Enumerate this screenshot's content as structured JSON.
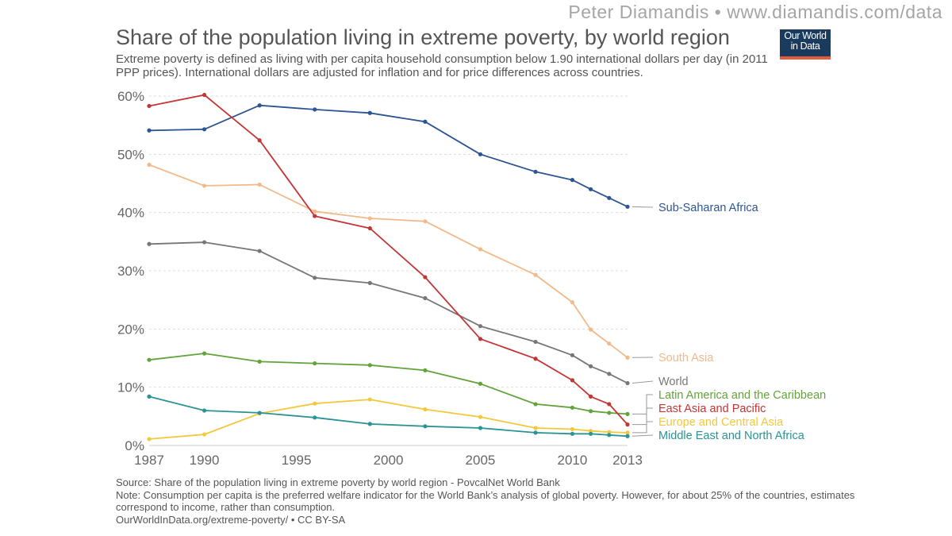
{
  "header": {
    "credit": "Peter Diamandis  •  www.diamandis.com/data",
    "title": "Share of the population living in extreme poverty, by world region",
    "subtitle": "Extreme poverty is defined as living with per capita household consumption below 1.90 international dollars per day (in 2011 PPP prices). International dollars are adjusted for inflation and for price differences across countries.",
    "logo_line1": "Our World",
    "logo_line2": "in Data",
    "logo_bg": "#1a3a5e",
    "logo_accent": "#e25c3d"
  },
  "footer": {
    "source": "Source: Share of the population living in extreme poverty by world region - PovcalNet World Bank",
    "note": "Note: Consumption per capita is the preferred welfare indicator for the World Bank’s analysis of global poverty. However, for about 25% of the countries, estimates correspond to income, rather than consumption.",
    "license": "OurWorldInData.org/extreme-poverty/ • CC BY-SA"
  },
  "chart_data": {
    "type": "line",
    "xlim": [
      1987,
      2013
    ],
    "ylim": [
      0,
      60
    ],
    "x_ticks": [
      1987,
      1990,
      1995,
      2000,
      2005,
      2010,
      2013
    ],
    "y_ticks": [
      0,
      10,
      20,
      30,
      40,
      50,
      60
    ],
    "y_tick_labels": [
      "0%",
      "10%",
      "20%",
      "30%",
      "40%",
      "50%",
      "60%"
    ],
    "grid": "horizontal dashed",
    "series": [
      {
        "name": "Sub-Saharan Africa",
        "color": "#2d5593",
        "x": [
          1987,
          1990,
          1993,
          1996,
          1999,
          2002,
          2005,
          2008,
          2010,
          2011,
          2012,
          2013
        ],
        "y": [
          54.1,
          54.3,
          58.4,
          57.7,
          57.1,
          55.6,
          50.0,
          47.0,
          45.6,
          44.0,
          42.5,
          41.0
        ]
      },
      {
        "name": "South Asia",
        "color": "#f2b98a",
        "x": [
          1987,
          1990,
          1993,
          1996,
          1999,
          2002,
          2005,
          2008,
          2010,
          2011,
          2012,
          2013
        ],
        "y": [
          48.2,
          44.6,
          44.8,
          40.2,
          39.0,
          38.5,
          33.7,
          29.3,
          24.6,
          19.9,
          17.5,
          15.1
        ]
      },
      {
        "name": "World",
        "color": "#777777",
        "x": [
          1987,
          1990,
          1993,
          1996,
          1999,
          2002,
          2005,
          2008,
          2010,
          2011,
          2012,
          2013
        ],
        "y": [
          34.6,
          34.9,
          33.4,
          28.8,
          27.9,
          25.3,
          20.5,
          17.8,
          15.5,
          13.6,
          12.3,
          10.7
        ]
      },
      {
        "name": "Latin America and the Caribbean",
        "color": "#62a33a",
        "x": [
          1987,
          1990,
          1993,
          1996,
          1999,
          2002,
          2005,
          2008,
          2010,
          2011,
          2012,
          2013
        ],
        "y": [
          14.7,
          15.8,
          14.4,
          14.1,
          13.8,
          12.9,
          10.6,
          7.1,
          6.5,
          5.9,
          5.6,
          5.4
        ]
      },
      {
        "name": "East Asia and Pacific",
        "color": "#c43535",
        "x": [
          1987,
          1990,
          1993,
          1996,
          1999,
          2002,
          2005,
          2008,
          2010,
          2011,
          2012,
          2013
        ],
        "y": [
          58.3,
          60.2,
          52.4,
          39.4,
          37.3,
          28.9,
          18.3,
          14.9,
          11.2,
          8.4,
          7.1,
          3.6
        ]
      },
      {
        "name": "Europe and Central Asia",
        "color": "#f4c83c",
        "x": [
          1987,
          1990,
          1993,
          1996,
          1999,
          2002,
          2005,
          2008,
          2010,
          2011,
          2012,
          2013
        ],
        "y": [
          1.1,
          1.9,
          5.5,
          7.2,
          7.9,
          6.2,
          4.9,
          3.0,
          2.8,
          2.5,
          2.3,
          2.2
        ]
      },
      {
        "name": "Middle East and North Africa",
        "color": "#2a9494",
        "x": [
          1987,
          1990,
          1993,
          1996,
          1999,
          2002,
          2005,
          2008,
          2010,
          2011,
          2012,
          2013
        ],
        "y": [
          8.4,
          6.0,
          5.6,
          4.8,
          3.7,
          3.3,
          3.0,
          2.2,
          2.0,
          2.0,
          1.8,
          1.6
        ]
      }
    ],
    "legend": "right, labels at line ends"
  }
}
